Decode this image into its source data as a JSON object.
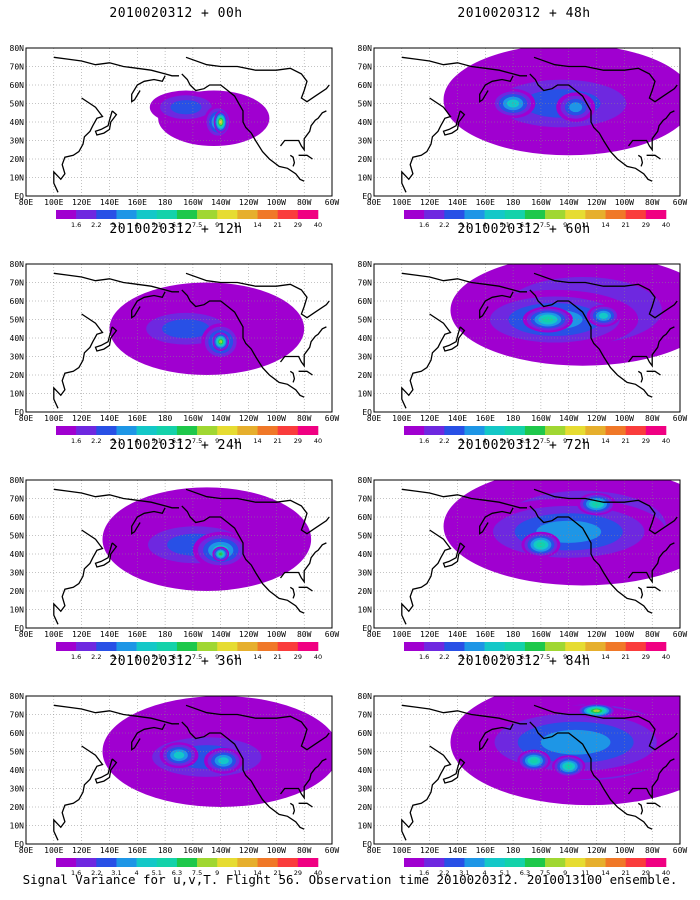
{
  "caption": "Signal Variance for u,v,T. Flight 56. Observation time 2010020312. 2010013100 ensemble.",
  "colors": [
    "#ffffff",
    "#a000d0",
    "#6e28e0",
    "#2850e6",
    "#1e96e6",
    "#14c8c8",
    "#14d2aa",
    "#1ec84b",
    "#a0d732",
    "#e6dc32",
    "#e6af2d",
    "#f07828",
    "#fa3c3c",
    "#f00082"
  ],
  "colorbar_labels": [
    "1.6",
    "2.2",
    "3.1",
    "4",
    "5.1",
    "6.3",
    "7.5",
    "9",
    "11",
    "14",
    "21",
    "29",
    "40"
  ],
  "lon_labels": [
    "80E",
    "100E",
    "120E",
    "140E",
    "160E",
    "180",
    "160W",
    "140W",
    "120W",
    "100W",
    "80W",
    "60W"
  ],
  "lat_labels": [
    "EQ",
    "10N",
    "20N",
    "30N",
    "40N",
    "50N",
    "60N",
    "70N",
    "80N"
  ],
  "chart_data": [
    {
      "type": "heatmap",
      "title": "2010020312 + 00h",
      "variable": "signal variance (u,v,T)",
      "x_range": [
        "80E",
        "60W"
      ],
      "y_range": [
        "EQ",
        "80N"
      ],
      "levels": [
        1.6,
        2.2,
        3.1,
        4,
        5.1,
        6.3,
        7.5,
        9,
        11,
        14,
        21,
        29,
        40
      ],
      "blobs": [
        {
          "lon": -145,
          "lat": 42,
          "rlon": 40,
          "rlat": 15,
          "level": 1
        },
        {
          "lon": -165,
          "lat": 48,
          "rlon": 26,
          "rlat": 9,
          "level": 3
        },
        {
          "lon": -142,
          "lat": 40,
          "rlon": 10,
          "rlat": 9,
          "level": 5
        },
        {
          "lon": -140,
          "lat": 40,
          "rlon": 5,
          "rlat": 6,
          "level": 9
        }
      ]
    },
    {
      "type": "heatmap",
      "title": "2010020312 + 12h",
      "variable": "signal variance (u,v,T)",
      "x_range": [
        "80E",
        "60W"
      ],
      "y_range": [
        "EQ",
        "80N"
      ],
      "levels": [
        1.6,
        2.2,
        3.1,
        4,
        5.1,
        6.3,
        7.5,
        9,
        11,
        14,
        21,
        29,
        40
      ],
      "blobs": [
        {
          "lon": -150,
          "lat": 45,
          "rlon": 70,
          "rlat": 25,
          "level": 1
        },
        {
          "lon": -165,
          "lat": 45,
          "rlon": 40,
          "rlat": 12,
          "level": 3
        },
        {
          "lon": -140,
          "lat": 38,
          "rlon": 14,
          "rlat": 10,
          "level": 5
        },
        {
          "lon": -140,
          "lat": 38,
          "rlon": 6,
          "rlat": 5,
          "level": 8
        }
      ]
    },
    {
      "type": "heatmap",
      "title": "2010020312 + 24h",
      "variable": "signal variance (u,v,T)",
      "x_range": [
        "80E",
        "60W"
      ],
      "y_range": [
        "EQ",
        "80N"
      ],
      "levels": [
        1.6,
        2.2,
        3.1,
        4,
        5.1,
        6.3,
        7.5,
        9,
        11,
        14,
        21,
        29,
        40
      ],
      "blobs": [
        {
          "lon": -150,
          "lat": 48,
          "rlon": 75,
          "rlat": 28,
          "level": 1
        },
        {
          "lon": -158,
          "lat": 45,
          "rlon": 48,
          "rlat": 14,
          "level": 3
        },
        {
          "lon": -140,
          "lat": 42,
          "rlon": 20,
          "rlat": 10,
          "level": 5
        },
        {
          "lon": -140,
          "lat": 40,
          "rlon": 6,
          "rlat": 4,
          "level": 7
        }
      ]
    },
    {
      "type": "heatmap",
      "title": "2010020312 + 36h",
      "variable": "signal variance (u,v,T)",
      "x_range": [
        "80E",
        "60W"
      ],
      "y_range": [
        "EQ",
        "80N"
      ],
      "levels": [
        1.6,
        2.2,
        3.1,
        4,
        5.1,
        6.3,
        7.5,
        9,
        11,
        14,
        21,
        29,
        40
      ],
      "blobs": [
        {
          "lon": -140,
          "lat": 50,
          "rlon": 85,
          "rlat": 30,
          "level": 1
        },
        {
          "lon": -150,
          "lat": 47,
          "rlon": 55,
          "rlat": 15,
          "level": 3
        },
        {
          "lon": -170,
          "lat": 48,
          "rlon": 14,
          "rlat": 7,
          "level": 5
        },
        {
          "lon": -138,
          "lat": 45,
          "rlon": 14,
          "rlat": 7,
          "level": 5
        }
      ]
    },
    {
      "type": "heatmap",
      "title": "2010020312 + 48h",
      "variable": "signal variance (u,v,T)",
      "x_range": [
        "80E",
        "60W"
      ],
      "y_range": [
        "EQ",
        "80N"
      ],
      "levels": [
        1.6,
        2.2,
        3.1,
        4,
        5.1,
        6.3,
        7.5,
        9,
        11,
        14,
        21,
        29,
        40
      ],
      "blobs": [
        {
          "lon": -140,
          "lat": 52,
          "rlon": 90,
          "rlat": 30,
          "level": 1
        },
        {
          "lon": -145,
          "lat": 50,
          "rlon": 65,
          "rlat": 18,
          "level": 3
        },
        {
          "lon": -180,
          "lat": 50,
          "rlon": 16,
          "rlat": 8,
          "level": 5
        },
        {
          "lon": -135,
          "lat": 48,
          "rlon": 14,
          "rlat": 8,
          "level": 4
        }
      ]
    },
    {
      "type": "heatmap",
      "title": "2010020312 + 60h",
      "variable": "signal variance (u,v,T)",
      "x_range": [
        "80E",
        "60W"
      ],
      "y_range": [
        "EQ",
        "80N"
      ],
      "levels": [
        1.6,
        2.2,
        3.1,
        4,
        5.1,
        6.3,
        7.5,
        9,
        11,
        14,
        21,
        29,
        40
      ],
      "blobs": [
        {
          "lon": -130,
          "lat": 55,
          "rlon": 95,
          "rlat": 30,
          "level": 2
        },
        {
          "lon": -150,
          "lat": 50,
          "rlon": 60,
          "rlat": 16,
          "level": 4
        },
        {
          "lon": -155,
          "lat": 50,
          "rlon": 18,
          "rlat": 7,
          "level": 6
        },
        {
          "lon": -115,
          "lat": 52,
          "rlon": 12,
          "rlat": 6,
          "level": 5
        }
      ]
    },
    {
      "type": "heatmap",
      "title": "2010020312 + 72h",
      "variable": "signal variance (u,v,T)",
      "x_range": [
        "80E",
        "60W"
      ],
      "y_range": [
        "EQ",
        "80N"
      ],
      "levels": [
        1.6,
        2.2,
        3.1,
        4,
        5.1,
        6.3,
        7.5,
        9,
        11,
        14,
        21,
        29,
        40
      ],
      "blobs": [
        {
          "lon": -130,
          "lat": 55,
          "rlon": 100,
          "rlat": 32,
          "level": 2
        },
        {
          "lon": -140,
          "lat": 52,
          "rlon": 70,
          "rlat": 18,
          "level": 4
        },
        {
          "lon": -120,
          "lat": 67,
          "rlon": 14,
          "rlat": 6,
          "level": 6
        },
        {
          "lon": -160,
          "lat": 45,
          "rlon": 14,
          "rlat": 7,
          "level": 6
        }
      ]
    },
    {
      "type": "heatmap",
      "title": "2010020312 + 84h",
      "variable": "signal variance (u,v,T)",
      "x_range": [
        "80E",
        "60W"
      ],
      "y_range": [
        "EQ",
        "80N"
      ],
      "levels": [
        1.6,
        2.2,
        3.1,
        4,
        5.1,
        6.3,
        7.5,
        9,
        11,
        14,
        21,
        29,
        40
      ],
      "blobs": [
        {
          "lon": -125,
          "lat": 55,
          "rlon": 100,
          "rlat": 34,
          "level": 2
        },
        {
          "lon": -135,
          "lat": 55,
          "rlon": 75,
          "rlat": 20,
          "level": 4
        },
        {
          "lon": -120,
          "lat": 72,
          "rlon": 14,
          "rlat": 4,
          "level": 8
        },
        {
          "lon": -165,
          "lat": 45,
          "rlon": 12,
          "rlat": 6,
          "level": 6
        },
        {
          "lon": -140,
          "lat": 42,
          "rlon": 12,
          "rlat": 6,
          "level": 6
        }
      ]
    }
  ]
}
